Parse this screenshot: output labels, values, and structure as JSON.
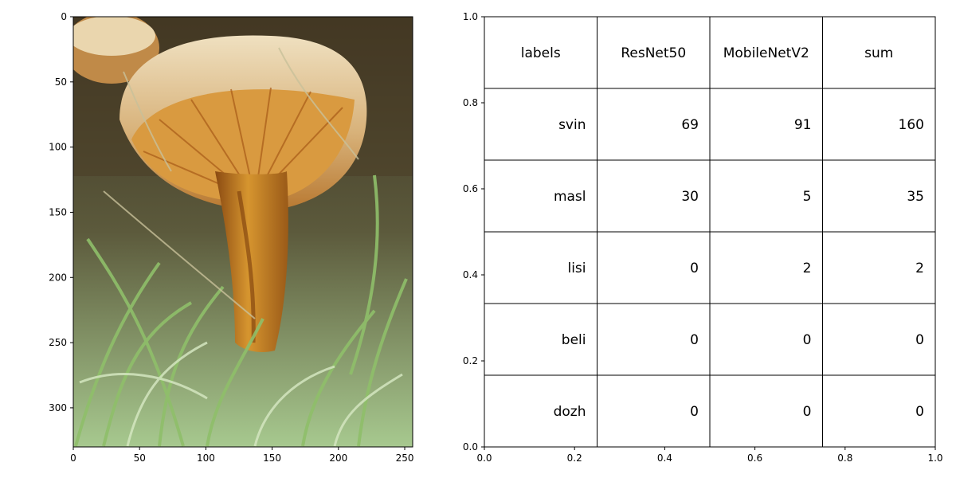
{
  "chart_data": [
    {
      "type": "image",
      "image_description_subject": "photo",
      "x_ticks": [
        "0",
        "50",
        "100",
        "150",
        "200",
        "250"
      ],
      "y_ticks": [
        "0",
        "50",
        "100",
        "150",
        "200",
        "250",
        "300"
      ],
      "xlim": [
        0,
        256
      ],
      "ylim": [
        330,
        0
      ]
    },
    {
      "type": "table",
      "x_ticks": [
        "0.0",
        "0.2",
        "0.4",
        "0.6",
        "0.8",
        "1.0"
      ],
      "y_ticks": [
        "0.0",
        "0.2",
        "0.4",
        "0.6",
        "0.8",
        "1.0"
      ],
      "xlim": [
        0,
        1
      ],
      "ylim": [
        0,
        1
      ],
      "columns": [
        "labels",
        "ResNet50",
        "MobileNetV2",
        "sum"
      ],
      "rows": [
        [
          "svin",
          "69",
          "91",
          "160"
        ],
        [
          "masl",
          "30",
          "5",
          "35"
        ],
        [
          "lisi",
          "0",
          "2",
          "2"
        ],
        [
          "beli",
          "0",
          "0",
          "0"
        ],
        [
          "dozh",
          "0",
          "0",
          "0"
        ]
      ]
    }
  ],
  "colors": {
    "cap_light": "#e6d2a8",
    "cap_dark": "#b8742a",
    "gill": "#d79a3c",
    "stem": "#c07a26",
    "grass": "#7fae5a",
    "grass_light": "#b9d7a0",
    "soil": "#2b2418"
  }
}
